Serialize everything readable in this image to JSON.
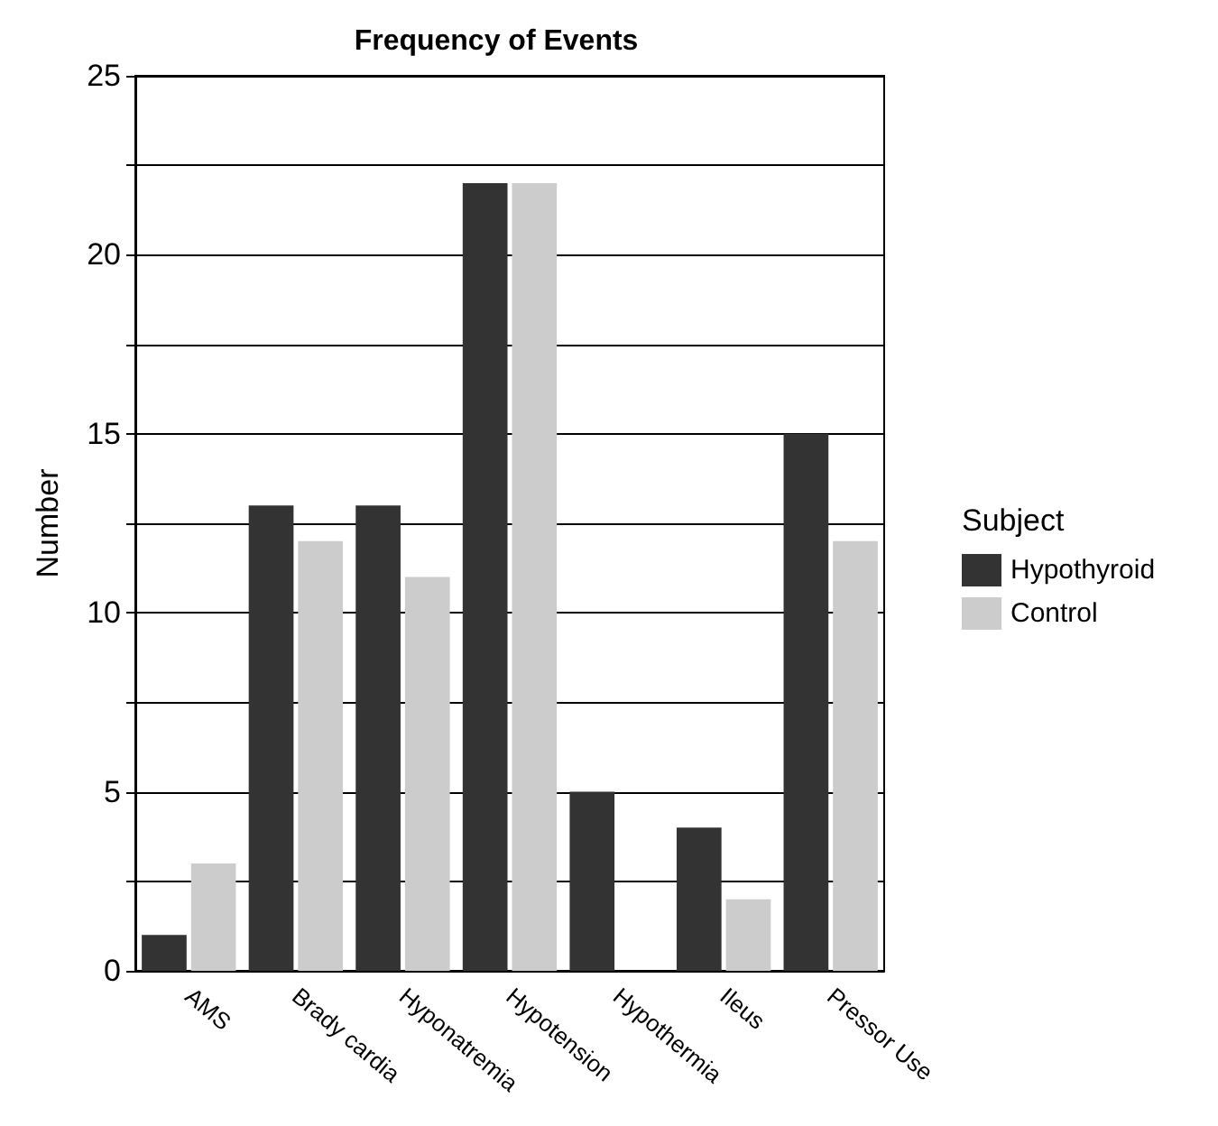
{
  "chart_data": {
    "type": "bar",
    "title": "Frequency of Events",
    "ylabel": "Number",
    "legend_title": "Subject",
    "categories": [
      "AMS",
      "Brady cardia",
      "Hyponatremia",
      "Hypotension",
      "Hypothermia",
      "Ileus",
      "Pressor Use"
    ],
    "series": [
      {
        "name": "Hypothyroid",
        "color": "#333333",
        "values": [
          1,
          13,
          13,
          22,
          5,
          4,
          15
        ]
      },
      {
        "name": "Control",
        "color": "#cccccc",
        "values": [
          3,
          12,
          11,
          22,
          0,
          2,
          12
        ]
      }
    ],
    "ylim": [
      0,
      25
    ],
    "yticks": [
      0,
      {
        "value": 2.5,
        "label": null
      },
      5,
      {
        "value": 7.5,
        "label": null
      },
      10,
      {
        "value": 12.5,
        "label": null
      },
      15,
      {
        "value": 17.5,
        "label": null
      },
      20,
      {
        "value": 22.5,
        "label": null
      },
      25
    ],
    "grid": "y",
    "legend": "right"
  }
}
